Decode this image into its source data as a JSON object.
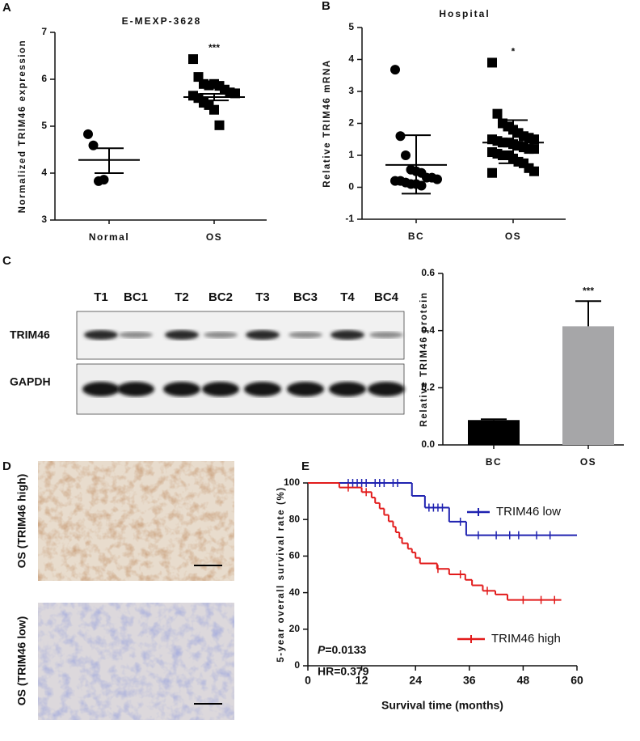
{
  "panels": [
    "A",
    "B",
    "C",
    "D",
    "E"
  ],
  "blot": {
    "lanes": [
      "T1",
      "BC1",
      "T2",
      "BC2",
      "T3",
      "BC3",
      "T4",
      "BC4"
    ],
    "rows": [
      "TRIM46",
      "GAPDH"
    ]
  },
  "ihc": {
    "labels": [
      "OS (TRIM46 high)",
      "OS (TRIM46 low)"
    ]
  },
  "chart_data": [
    {
      "type": "dotplot",
      "title": "E-MEXP-3628",
      "y_label": "Normalized TRIM46 expression",
      "categories": [
        "Normal",
        "OS"
      ],
      "color": "#000000",
      "groups": [
        {
          "marker": "circle",
          "values": [
            4.83,
            4.59,
            3.83,
            3.86
          ],
          "mean": 4.28,
          "error_low": 4.0,
          "error_high": 4.53
        },
        {
          "marker": "square",
          "annotation": "***",
          "values": [
            6.43,
            6.05,
            5.9,
            5.87,
            5.9,
            5.86,
            5.78,
            5.72,
            5.7,
            5.65,
            5.6,
            5.5,
            5.45,
            5.35,
            5.02
          ],
          "mean": 5.62,
          "error_low": 5.55,
          "error_high": 5.69
        }
      ],
      "ylim": [
        3,
        7
      ],
      "yticks": [
        3,
        4,
        5,
        6,
        7
      ]
    },
    {
      "type": "dotplot",
      "title": "Hospital",
      "y_label": "Relative TRIM46 mRNA",
      "categories": [
        "BC",
        "OS"
      ],
      "color": "#000000",
      "groups": [
        {
          "marker": "circle",
          "values": [
            3.68,
            1.6,
            1.0,
            0.55,
            0.5,
            0.45,
            0.3,
            0.3,
            0.25,
            0.2,
            0.2,
            0.15,
            0.1,
            0.1,
            0.05
          ],
          "mean": 0.7,
          "error_low": -0.2,
          "error_high": 1.63
        },
        {
          "marker": "square",
          "annotation": "*",
          "values": [
            3.9,
            2.3,
            2.0,
            1.9,
            1.8,
            1.7,
            1.6,
            1.55,
            1.5,
            1.5,
            1.45,
            1.4,
            1.4,
            1.35,
            1.3,
            1.25,
            1.2,
            1.2,
            1.1,
            1.05,
            1.0,
            1.0,
            0.9,
            0.8,
            0.75,
            0.6,
            0.5,
            0.45
          ],
          "mean": 1.4,
          "error_low": 0.75,
          "error_high": 2.1
        }
      ],
      "ylim": [
        -1,
        5
      ],
      "yticks": [
        -1,
        0,
        1,
        2,
        3,
        4,
        5
      ]
    },
    {
      "type": "bar",
      "y_label": "Relative TRIM46 protein",
      "categories": [
        "BC",
        "OS"
      ],
      "values": [
        0.087,
        0.415
      ],
      "errors": [
        0.003,
        0.088
      ],
      "colors": [
        "#000000",
        "#a6a6a8"
      ],
      "annotations": [
        null,
        "***"
      ],
      "ylim": [
        0,
        0.6
      ],
      "yticks": [
        {
          "value": 0,
          "label": "0.0"
        },
        0.2,
        0.4,
        0.6
      ]
    },
    {
      "type": "survival",
      "x_label": "Survival time (months)",
      "y_label": "5-year overall survival rate (%)",
      "xlim": [
        0,
        60
      ],
      "xticks": [
        0,
        12,
        24,
        36,
        48,
        60
      ],
      "ylim": [
        0,
        100
      ],
      "yticks": [
        0,
        20,
        40,
        60,
        80,
        100
      ],
      "series": [
        {
          "name": "TRIM46 low",
          "color": "#1f22b0",
          "x": [
            0,
            23.2,
            26.1,
            31.5,
            35.3,
            60
          ],
          "values": [
            100,
            92.9,
            86.5,
            78.8,
            71.4,
            71.4
          ],
          "censored": [
            9,
            10,
            11,
            12,
            13,
            15,
            16,
            17,
            19,
            20,
            27,
            28,
            29,
            30,
            34,
            38,
            42,
            45,
            47,
            51,
            54
          ]
        },
        {
          "name": "TRIM46 high",
          "color": "#e21b1b",
          "x": [
            0,
            7,
            12,
            14.2,
            15,
            16,
            17,
            18,
            19,
            19.6,
            20.4,
            21,
            22.3,
            23.2,
            24,
            25,
            28.8,
            31.5,
            35.1,
            36.6,
            39,
            41.8,
            44.5,
            56.5
          ],
          "values": [
            100,
            97.5,
            95,
            92,
            89,
            86,
            82.5,
            79,
            76,
            73,
            70,
            67,
            64,
            62,
            59,
            56,
            53,
            50,
            47,
            44,
            41,
            39,
            36,
            36
          ],
          "censored": [
            9,
            13,
            29,
            34,
            40,
            48,
            52,
            55
          ]
        }
      ],
      "annotations": [
        "P=0.0133",
        "HR=0.379"
      ]
    }
  ]
}
